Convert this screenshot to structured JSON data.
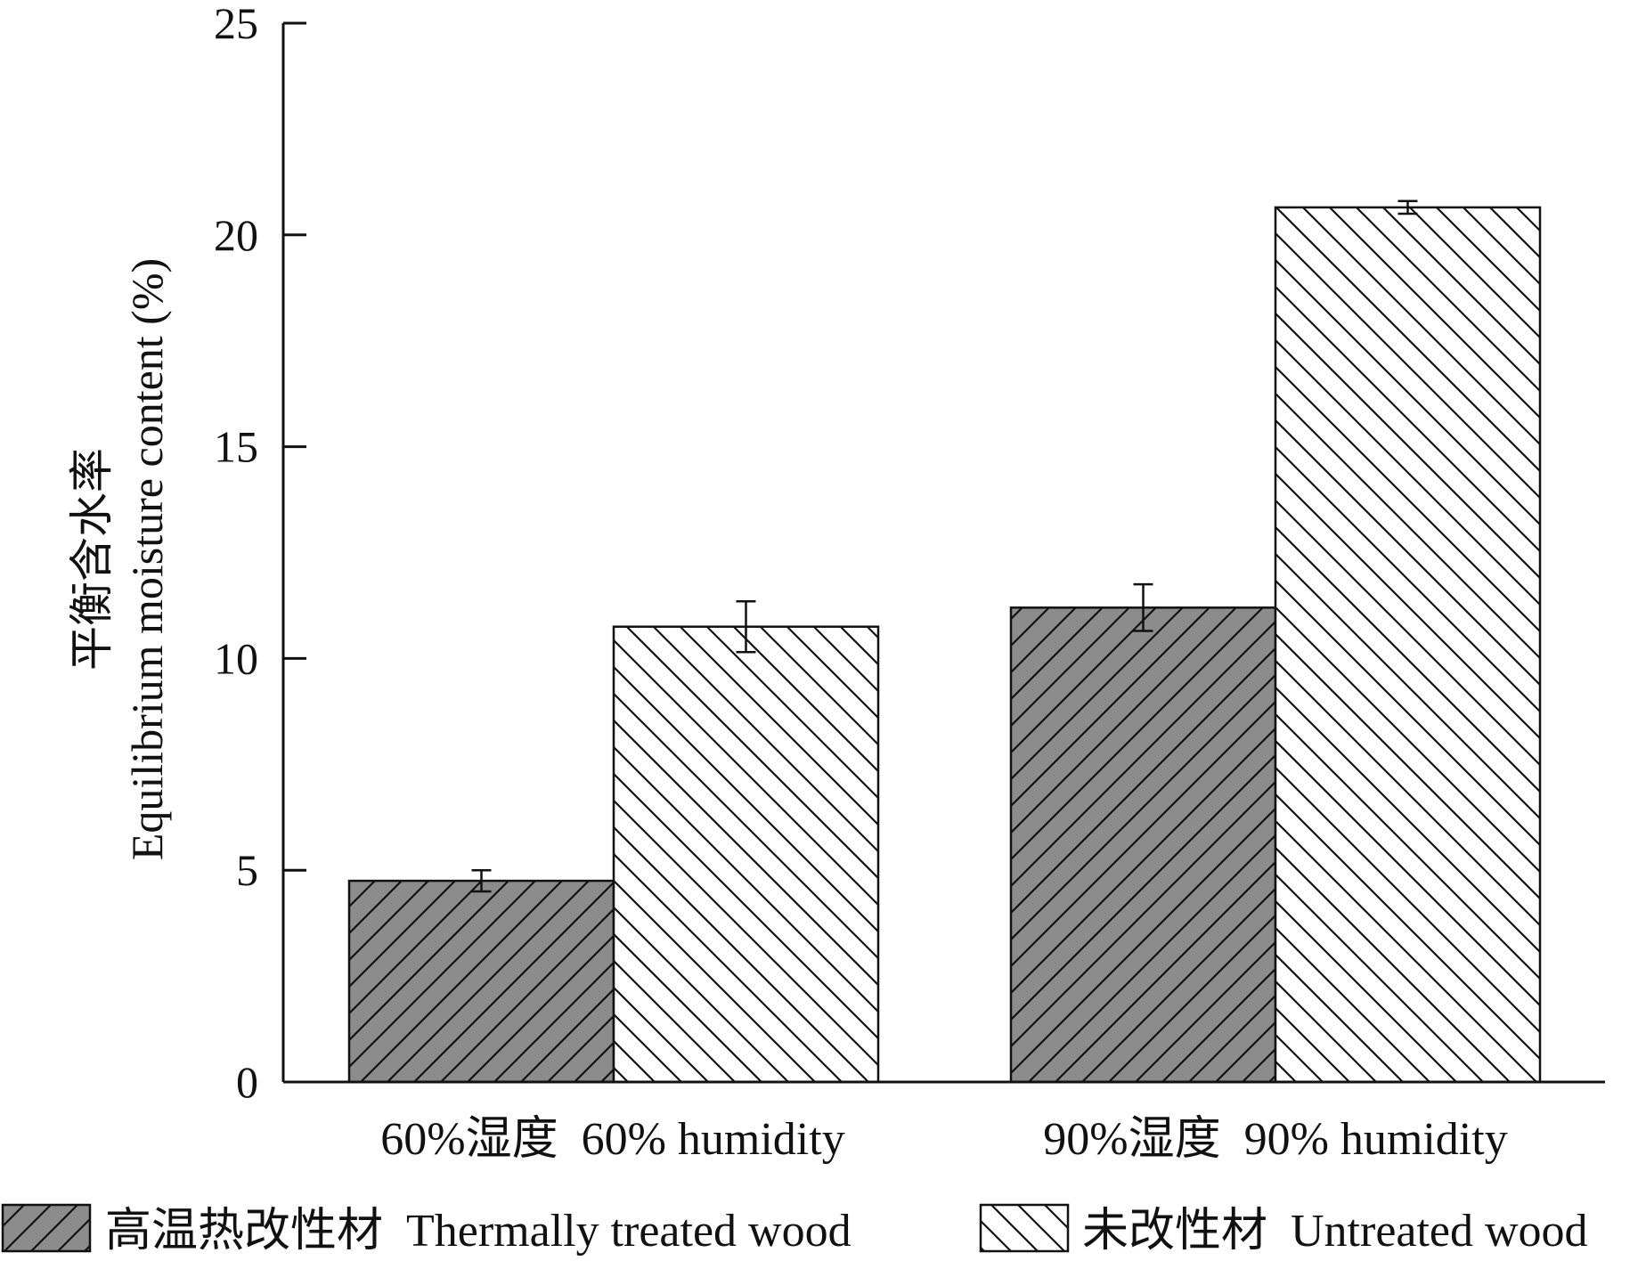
{
  "chart_data": {
    "type": "bar",
    "ylabel_cn": "平衡含水率",
    "ylabel_en": "Equilibrium moisture content (%)",
    "xlabel": "",
    "ylim": [
      0,
      25
    ],
    "yticks": [
      0,
      5,
      10,
      15,
      20,
      25
    ],
    "categories": [
      "60%湿度  60% humidity",
      "90%湿度  90% humidity"
    ],
    "series": [
      {
        "name": "高温热改性材  Thermally treated wood",
        "values": [
          4.75,
          11.2
        ],
        "errors": [
          0.25,
          0.55
        ],
        "fill": "#8c8c8c",
        "hatch": "forward-diagonal"
      },
      {
        "name": "未改性材  Untreated wood",
        "values": [
          10.75,
          20.65
        ],
        "errors": [
          0.6,
          0.15
        ],
        "fill": "#ffffff",
        "hatch": "back-diagonal"
      }
    ],
    "grid": false,
    "legend_position": "bottom"
  },
  "colors": {
    "axis": "#111111",
    "thermally_treated_fill": "#8c8c8c",
    "untreated_fill": "#ffffff"
  }
}
